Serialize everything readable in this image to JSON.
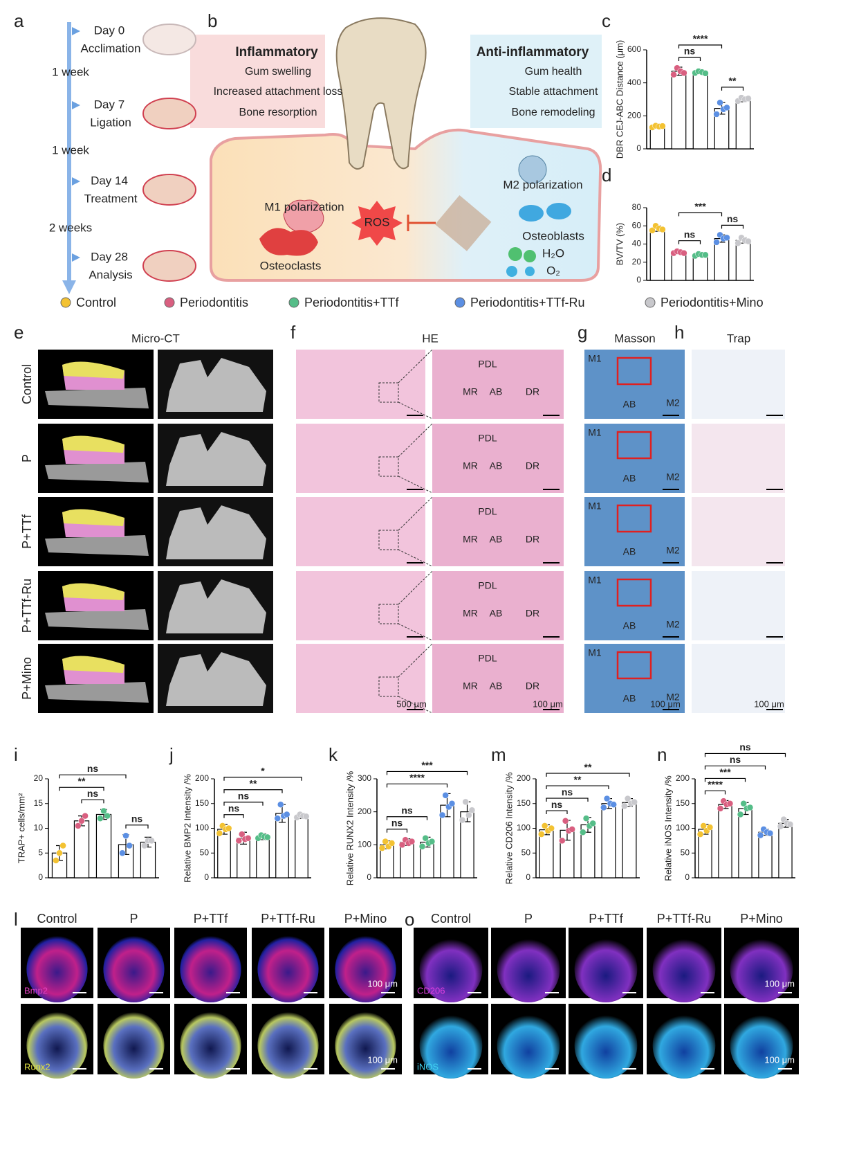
{
  "panel_letters": [
    "a",
    "b",
    "c",
    "d",
    "e",
    "f",
    "g",
    "h",
    "i",
    "j",
    "k",
    "l",
    "m",
    "n",
    "o"
  ],
  "timeline": {
    "events": [
      {
        "day": "Day 0",
        "label": "Acclimation"
      },
      {
        "day": "Day 7",
        "label": "Ligation"
      },
      {
        "day": "Day 14",
        "label": "Treatment"
      },
      {
        "day": "Day 28",
        "label": "Analysis"
      }
    ],
    "intervals": [
      "1 week",
      "1 week",
      "2 weeks"
    ]
  },
  "schematic": {
    "inflammatory": {
      "title": "Inflammatory",
      "items": [
        "Gum swelling",
        "Increased attachment loss",
        "Bone resorption"
      ]
    },
    "anti_inflammatory": {
      "title": "Anti-inflammatory",
      "items": [
        "Gum health",
        "Stable attachment",
        "Bone remodeling"
      ]
    },
    "labels": {
      "m1": "M1 polarization",
      "osteoclasts": "Osteoclasts",
      "ros": "ROS",
      "m2": "M2 polarization",
      "osteoblasts": "Osteoblasts",
      "h2o": "H₂O",
      "o2": "O₂"
    }
  },
  "groups": [
    {
      "name": "Control",
      "color": "#f3c232"
    },
    {
      "name": "Periodontitis",
      "color": "#d95f80"
    },
    {
      "name": "Periodontitis+TTf",
      "color": "#55bd88"
    },
    {
      "name": "Periodontitis+TTf-Ru",
      "color": "#5b8fe3"
    },
    {
      "name": "Periodontitis+Mino",
      "color": "#c8c8cc"
    }
  ],
  "imaging": {
    "micro_ct": {
      "title": "Micro-CT",
      "rows": [
        "Control",
        "P",
        "P+TTf",
        "P+TTf-Ru",
        "P+Mino"
      ]
    },
    "he": {
      "title": "HE",
      "labels": [
        "PDL",
        "MR",
        "AB",
        "DR"
      ],
      "scale_bars": [
        "500 μm",
        "100 μm"
      ]
    },
    "masson": {
      "title": "Masson",
      "labels": [
        "M1",
        "M2",
        "AB"
      ],
      "scale_bar": "100 μm"
    },
    "trap": {
      "title": "Trap",
      "scale_bar": "100 μm"
    }
  },
  "fluorescence": {
    "l": {
      "columns": [
        "Control",
        "P",
        "P+TTf",
        "P+TTf-Ru",
        "P+Mino"
      ],
      "stains": [
        "Bmp2",
        "Runx2"
      ],
      "scale_bar": "100 μm"
    },
    "o": {
      "columns": [
        "Control",
        "P",
        "P+TTf",
        "P+TTf-Ru",
        "P+Mino"
      ],
      "stains": [
        "CD206",
        "iNOS"
      ],
      "scale_bar": "100 μm"
    }
  },
  "chart_data": [
    {
      "type": "bar",
      "ylabel": "DBR CEJ-ABC Distance (μm)",
      "categories": [
        null,
        null,
        null,
        null,
        null
      ],
      "values": [
        135,
        470,
        465,
        245,
        300
      ],
      "errors": [
        10,
        25,
        10,
        35,
        15
      ],
      "points": [
        [
          130,
          140,
          135,
          138
        ],
        [
          450,
          490,
          470,
          460
        ],
        [
          460,
          470,
          465,
          458
        ],
        [
          210,
          280,
          240,
          250
        ],
        [
          290,
          310,
          300,
          305
        ]
      ],
      "ylim": [
        0,
        600
      ],
      "yticks": [
        0,
        200,
        400,
        600
      ],
      "annotations": [
        {
          "label": "ns",
          "from": 1,
          "to": 2
        },
        {
          "label": "**",
          "from": 3,
          "to": 4
        },
        {
          "label": "****",
          "from": 1,
          "to": 3
        }
      ]
    },
    {
      "type": "bar",
      "ylabel": "BV/TV (%)",
      "categories": [
        null,
        null,
        null,
        null,
        null
      ],
      "values": [
        57,
        31,
        28,
        46,
        44
      ],
      "errors": [
        3,
        2,
        2,
        4,
        3
      ],
      "points": [
        [
          55,
          60,
          57,
          56
        ],
        [
          30,
          32,
          31,
          30
        ],
        [
          27,
          29,
          28,
          28
        ],
        [
          42,
          50,
          46,
          47
        ],
        [
          41,
          47,
          44,
          43
        ]
      ],
      "ylim": [
        0,
        80
      ],
      "yticks": [
        0,
        20,
        40,
        60,
        80
      ],
      "annotations": [
        {
          "label": "ns",
          "from": 1,
          "to": 2
        },
        {
          "label": "ns",
          "from": 3,
          "to": 4
        },
        {
          "label": "***",
          "from": 1,
          "to": 3
        }
      ]
    },
    {
      "type": "bar",
      "ylabel": "TRAP+ cells/mm²",
      "categories": [
        null,
        null,
        null,
        null,
        null
      ],
      "values": [
        5,
        11.5,
        12.8,
        6.7,
        7.2
      ],
      "errors": [
        1.5,
        1,
        1,
        2,
        1
      ],
      "points": [
        [
          3.5,
          5,
          6.5
        ],
        [
          10.5,
          11.5,
          12.5
        ],
        [
          12,
          13.5,
          12.5
        ],
        [
          5,
          8.5,
          6.5
        ],
        [
          6.5,
          7.5,
          7.5
        ]
      ],
      "ylim": [
        0,
        20
      ],
      "yticks": [
        0,
        5,
        10,
        15,
        20
      ],
      "annotations": [
        {
          "label": "ns",
          "from": 1,
          "to": 2
        },
        {
          "label": "ns",
          "from": 3,
          "to": 4
        },
        {
          "label": "**",
          "from": 0,
          "to": 2
        },
        {
          "label": "ns",
          "from": 0,
          "to": 3
        }
      ]
    },
    {
      "type": "bar",
      "ylabel": "Relative BMP2 Intensity /%",
      "categories": [
        null,
        null,
        null,
        null,
        null
      ],
      "values": [
        98,
        80,
        83,
        130,
        125
      ],
      "errors": [
        10,
        12,
        6,
        18,
        5
      ],
      "points": [
        [
          90,
          105,
          98,
          100
        ],
        [
          75,
          88,
          78,
          80
        ],
        [
          80,
          86,
          83,
          82
        ],
        [
          120,
          148,
          125,
          128
        ],
        [
          122,
          128,
          125,
          124
        ]
      ],
      "ylim": [
        0,
        200
      ],
      "yticks": [
        0,
        50,
        100,
        150,
        200
      ],
      "annotations": [
        {
          "label": "ns",
          "from": 0,
          "to": 1
        },
        {
          "label": "ns",
          "from": 0,
          "to": 2
        },
        {
          "label": "**",
          "from": 0,
          "to": 3
        },
        {
          "label": "*",
          "from": 0,
          "to": 4
        }
      ]
    },
    {
      "type": "bar",
      "ylabel": "Relative RUNX2 Intensity /%",
      "categories": [
        null,
        null,
        null,
        null,
        null
      ],
      "values": [
        100,
        108,
        108,
        220,
        200
      ],
      "errors": [
        12,
        10,
        15,
        35,
        30
      ],
      "points": [
        [
          90,
          110,
          95,
          105
        ],
        [
          100,
          115,
          105,
          110
        ],
        [
          95,
          120,
          105,
          110
        ],
        [
          190,
          250,
          215,
          225
        ],
        [
          175,
          230,
          190,
          205
        ]
      ],
      "ylim": [
        0,
        300
      ],
      "yticks": [
        0,
        100,
        200,
        300
      ],
      "annotations": [
        {
          "label": "ns",
          "from": 0,
          "to": 1
        },
        {
          "label": "ns",
          "from": 0,
          "to": 2
        },
        {
          "label": "****",
          "from": 0,
          "to": 3
        },
        {
          "label": "***",
          "from": 0,
          "to": 4
        }
      ]
    },
    {
      "type": "bar",
      "ylabel": "Relative CD206 Intensity /%",
      "categories": [
        null,
        null,
        null,
        null,
        null
      ],
      "values": [
        97,
        96,
        107,
        150,
        152
      ],
      "errors": [
        10,
        20,
        15,
        10,
        8
      ],
      "points": [
        [
          88,
          105,
          95,
          100
        ],
        [
          75,
          115,
          95,
          98
        ],
        [
          92,
          120,
          105,
          110
        ],
        [
          142,
          160,
          150,
          148
        ],
        [
          145,
          160,
          150,
          153
        ]
      ],
      "ylim": [
        0,
        200
      ],
      "yticks": [
        0,
        50,
        100,
        150,
        200
      ],
      "annotations": [
        {
          "label": "ns",
          "from": 0,
          "to": 1
        },
        {
          "label": "ns",
          "from": 0,
          "to": 2
        },
        {
          "label": "**",
          "from": 0,
          "to": 3
        },
        {
          "label": "**",
          "from": 0,
          "to": 4
        }
      ]
    },
    {
      "type": "bar",
      "ylabel": "Relative iNOS Intensity /%",
      "categories": [
        null,
        null,
        null,
        null,
        null
      ],
      "values": [
        98,
        148,
        140,
        92,
        110
      ],
      "errors": [
        10,
        8,
        12,
        6,
        8
      ],
      "points": [
        [
          88,
          105,
          95,
          102
        ],
        [
          140,
          155,
          148,
          150
        ],
        [
          128,
          150,
          140,
          142
        ],
        [
          86,
          98,
          92,
          90
        ],
        [
          104,
          118,
          110,
          108
        ]
      ],
      "ylim": [
        0,
        200
      ],
      "yticks": [
        0,
        50,
        100,
        150,
        200
      ],
      "annotations": [
        {
          "label": "****",
          "from": 0,
          "to": 1
        },
        {
          "label": "***",
          "from": 0,
          "to": 2
        },
        {
          "label": "ns",
          "from": 0,
          "to": 3
        },
        {
          "label": "ns",
          "from": 0,
          "to": 4
        }
      ]
    }
  ]
}
